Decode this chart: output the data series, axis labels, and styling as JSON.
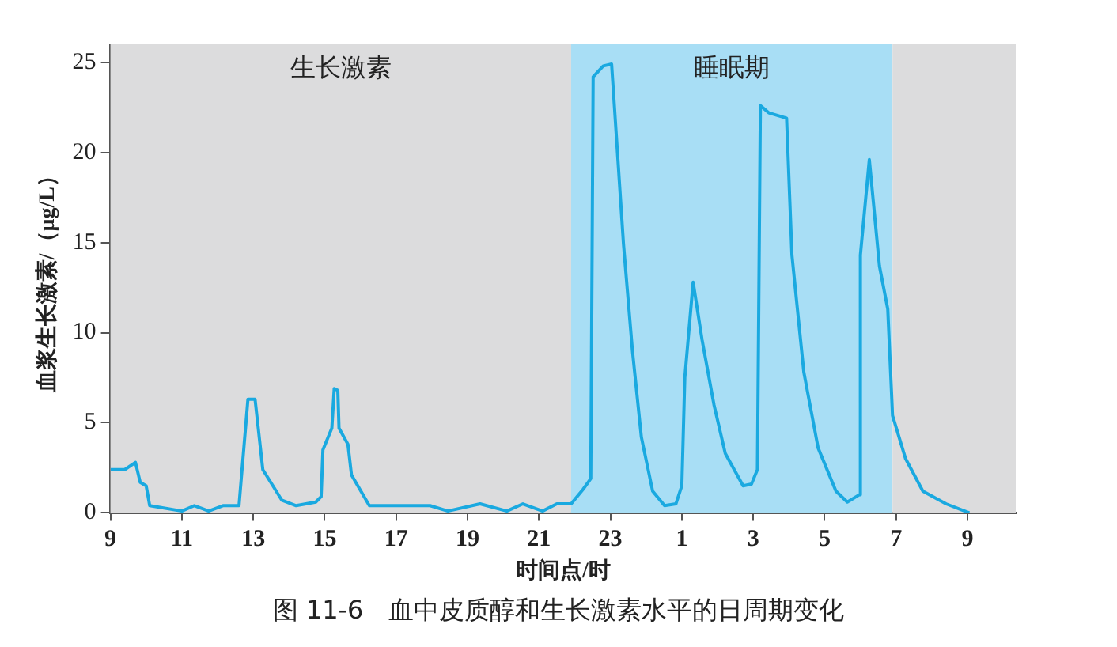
{
  "chart_data": {
    "type": "line",
    "xlabel": "时间点/时",
    "ylabel": "血浆生长激素/（μg/L）",
    "annotations": [
      "图 11-6　血中皮质醇和生长激素水平的日周期变化"
    ],
    "xlim": [
      "--01-01T09:00",
      "--01-02T10:21"
    ],
    "ylim": [
      0,
      26
    ],
    "xticks": [
      {
        "value": "--01-01T09:00",
        "label": "9"
      },
      {
        "value": "--01-01T11:00",
        "label": "11"
      },
      {
        "value": "--01-01T13:00",
        "label": "13"
      },
      {
        "value": "--01-01T15:00",
        "label": "15"
      },
      {
        "value": "--01-01T17:00",
        "label": "17"
      },
      {
        "value": "--01-01T19:00",
        "label": "19"
      },
      {
        "value": "--01-01T21:00",
        "label": "21"
      },
      {
        "value": "--01-01T23:00",
        "label": "23"
      },
      {
        "value": "--01-02T01:00",
        "label": "1"
      },
      {
        "value": "--01-02T03:00",
        "label": "3"
      },
      {
        "value": "--01-02T05:00",
        "label": "5"
      },
      {
        "value": "--01-02T07:00",
        "label": "7"
      },
      {
        "value": "--01-02T09:00",
        "label": "9"
      }
    ],
    "yticks": [
      0,
      5,
      10,
      15,
      20,
      25
    ],
    "grid": false,
    "legend": false,
    "marker": "none",
    "line_style": "solid",
    "bands": [
      {
        "axis": "x",
        "from": "--01-01T09:00",
        "to": "--01-01T21:54",
        "label": "生长激素",
        "color": "#dcdcdd"
      },
      {
        "axis": "x",
        "from": "--01-01T21:54",
        "to": "--01-02T06:54",
        "label": "睡眠期",
        "color": "#a8def5"
      },
      {
        "axis": "x",
        "from": "--01-02T06:54",
        "to": "--01-02T10:21",
        "color": "#dcdcdd"
      }
    ],
    "series": [
      {
        "color": "#1aa9e0",
        "x": [
          "--01-01T09:00",
          "--01-01T09:24",
          "--01-01T09:42",
          "--01-01T09:50",
          "--01-01T10:00",
          "--01-01T10:06",
          "--01-01T11:00",
          "--01-01T11:21",
          "--01-01T11:45",
          "--01-01T12:09",
          "--01-01T12:36",
          "--01-01T12:51",
          "--01-01T13:03",
          "--01-01T13:16",
          "--01-01T13:33",
          "--01-01T13:48",
          "--01-01T14:12",
          "--01-01T14:45",
          "--01-01T14:54",
          "--01-01T14:57",
          "--01-01T15:12",
          "--01-01T15:16",
          "--01-01T15:22",
          "--01-01T15:24",
          "--01-01T15:39",
          "--01-01T15:45",
          "--01-01T16:15",
          "--01-01T17:57",
          "--01-01T18:27",
          "--01-01T19:21",
          "--01-01T20:06",
          "--01-01T20:33",
          "--01-01T21:06",
          "--01-01T21:30",
          "--01-01T21:54",
          "--01-01T22:14",
          "--01-01T22:27",
          "--01-01T22:31",
          "--01-01T22:48",
          "--01-01T23:02",
          "--01-01T23:10",
          "--01-01T23:22",
          "--01-01T23:37",
          "--01-01T23:52",
          "--01-02T00:11",
          "--01-02T00:31",
          "--01-02T00:50",
          "--01-02T01:00",
          "--01-02T01:05",
          "--01-02T01:19",
          "--01-02T01:34",
          "--01-02T01:54",
          "--01-02T02:13",
          "--01-02T02:43",
          "--01-02T02:57",
          "--01-02T03:07",
          "--01-02T03:12",
          "--01-02T03:26",
          "--01-02T03:56",
          "--01-02T04:05",
          "--01-02T04:25",
          "--01-02T04:49",
          "--01-02T05:19",
          "--01-02T05:38",
          "--01-02T05:58",
          "--01-02T06:00",
          "--01-02T06:15",
          "--01-02T06:32",
          "--01-02T06:46",
          "--01-02T06:54",
          "--01-02T07:16",
          "--01-02T07:45",
          "--01-02T08:24",
          "--01-02T09:03"
        ],
        "values": [
          2.4,
          2.4,
          2.8,
          1.7,
          1.5,
          0.4,
          0.1,
          0.4,
          0.1,
          0.4,
          0.4,
          6.3,
          6.3,
          2.4,
          1.5,
          0.7,
          0.4,
          0.6,
          0.9,
          3.5,
          4.7,
          6.9,
          6.8,
          4.7,
          3.8,
          2.1,
          0.4,
          0.4,
          0.1,
          0.5,
          0.1,
          0.5,
          0.1,
          0.5,
          0.5,
          1.3,
          1.9,
          24.2,
          24.8,
          24.9,
          20.9,
          14.9,
          9,
          4.2,
          1.2,
          0.4,
          0.5,
          1.5,
          7.5,
          12.8,
          9.6,
          6,
          3.3,
          1.5,
          1.6,
          2.4,
          22.6,
          22.2,
          21.9,
          14.3,
          7.8,
          3.6,
          1.2,
          0.6,
          1,
          14.3,
          19.6,
          13.7,
          11.3,
          5.4,
          3,
          1.2,
          0.5,
          0
        ]
      }
    ]
  }
}
